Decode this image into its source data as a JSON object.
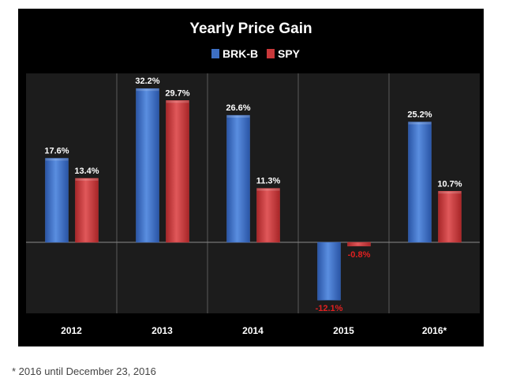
{
  "chart_data": {
    "type": "bar",
    "title": "Yearly Price Gain",
    "categories": [
      "2012",
      "2013",
      "2014",
      "2015",
      "2016*"
    ],
    "series": [
      {
        "name": "BRK-B",
        "values": [
          17.6,
          32.2,
          26.6,
          -12.1,
          25.2
        ],
        "labels": [
          "17.6%",
          "32.2%",
          "26.6%",
          "-12.1%",
          "25.2%"
        ],
        "color": "#3d6fc4"
      },
      {
        "name": "SPY",
        "values": [
          13.4,
          29.7,
          11.3,
          -0.8,
          10.7
        ],
        "labels": [
          "13.4%",
          "29.7%",
          "11.3%",
          "-0.8%",
          "10.7%"
        ],
        "color": "#c9383a"
      }
    ],
    "positive_label_color": "#ffffff",
    "negative_label_color": "#e02020",
    "ylim": [
      -15,
      35
    ],
    "grid": false,
    "legend": "top-center",
    "background": "#000000",
    "plot_background": "#1c1c1c"
  },
  "footnote": "* 2016 until December 23, 2016"
}
